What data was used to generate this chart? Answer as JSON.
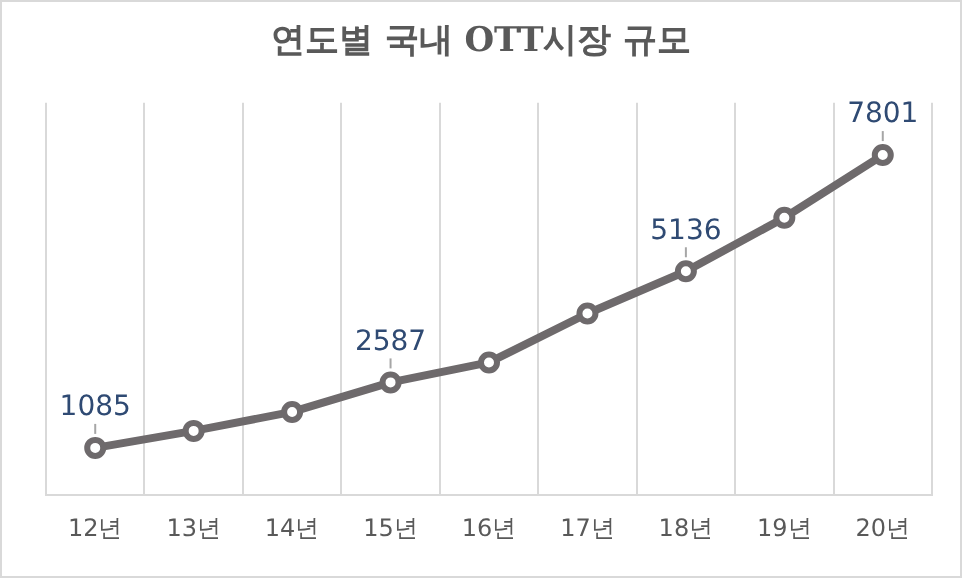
{
  "chart_data": {
    "type": "line",
    "title": "연도별 국내 OTT시장 규모",
    "categories": [
      "12년",
      "13년",
      "14년",
      "15년",
      "16년",
      "17년",
      "18년",
      "19년",
      "20년"
    ],
    "series": [
      {
        "color": "#6e6a6c",
        "values": [
          1085,
          1475,
          1910,
          2587,
          3045,
          4167,
          5136,
          6365,
          7801
        ],
        "value_labels": [
          "1085",
          null,
          null,
          "2587",
          null,
          null,
          "5136",
          null,
          "7801"
        ]
      }
    ],
    "ylim": [
      0,
      9000
    ],
    "tick_labels": "x",
    "grid": "x",
    "legend": false,
    "marker": "circle",
    "line_style": "solid"
  }
}
